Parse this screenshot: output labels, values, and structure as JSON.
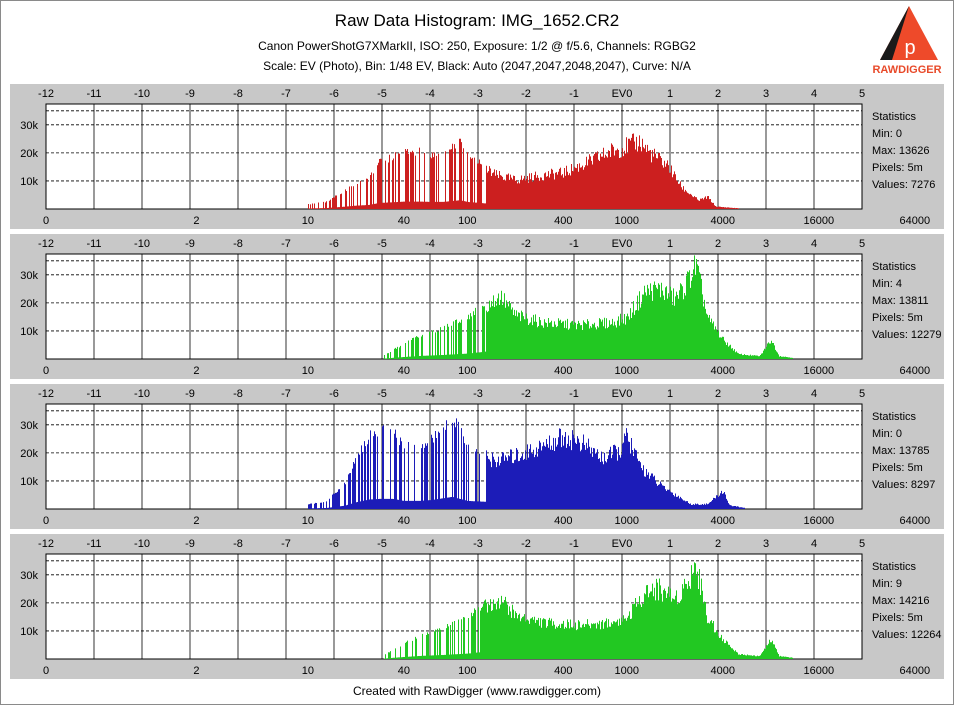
{
  "header": {
    "title": "Raw Data Histogram: IMG_1652.CR2",
    "subtitle1": "Canon PowerShotG7XMarkII, ISO: 250, Exposure: 1/2 @ f/5.6, Channels: RGBG2",
    "subtitle2": "Scale: EV (Photo), Bin: 1/48 EV, Black: Auto (2047,2047,2048,2047), Curve: N/A"
  },
  "logo": {
    "text": "RAWDIGGER",
    "letter": "p"
  },
  "footer": "Created with RawDigger (www.rawdigger.com)",
  "colors": {
    "panel_bg": "#c8c8c8",
    "plot_bg": "#ffffff",
    "red": "#cc1f1f",
    "green": "#22c822",
    "blue": "#1c1cb8",
    "green2": "#22c822"
  },
  "chart_data": [
    {
      "type": "bar",
      "channel": "R",
      "color": "#cc1f1f",
      "x_scale": "log2",
      "ev_ticks": [
        "-12",
        "-11",
        "-10",
        "-9",
        "-8",
        "-7",
        "-6",
        "-5",
        "-4",
        "-3",
        "-2",
        "-1",
        "EV0",
        "1",
        "2",
        "3",
        "4",
        "5"
      ],
      "value_ticks": [
        "0",
        "2",
        "10",
        "40",
        "100",
        "400",
        "1000",
        "4000",
        "16000",
        "64000"
      ],
      "y_ticks": [
        "30k",
        "20k",
        "10k"
      ],
      "ylim": [
        0,
        36000
      ],
      "peaks": [
        [
          10,
          1800
        ],
        [
          13,
          2800
        ],
        [
          17,
          7000
        ],
        [
          20,
          10000
        ],
        [
          24,
          12000
        ],
        [
          28,
          18000
        ],
        [
          34,
          20000
        ],
        [
          40,
          22000
        ],
        [
          50,
          22000
        ],
        [
          60,
          21000
        ],
        [
          70,
          21000
        ],
        [
          80,
          24000
        ],
        [
          90,
          26000
        ],
        [
          100,
          21000
        ],
        [
          150,
          14000
        ],
        [
          200,
          12000
        ],
        [
          300,
          14000
        ],
        [
          400,
          15000
        ],
        [
          600,
          20000
        ],
        [
          800,
          24000
        ],
        [
          1000,
          26000
        ],
        [
          1200,
          28000
        ],
        [
          1400,
          23000
        ],
        [
          1800,
          18000
        ],
        [
          2200,
          9000
        ],
        [
          2800,
          3500
        ],
        [
          3200,
          5000
        ],
        [
          3600,
          1000
        ],
        [
          5000,
          300
        ]
      ],
      "statistics": {
        "label": "Statistics",
        "min": "Min: 0",
        "max": "Max: 13626",
        "pixels": "Pixels: 5m",
        "values": "Values: 7276"
      }
    },
    {
      "type": "bar",
      "channel": "G",
      "color": "#22c822",
      "x_scale": "log2",
      "ev_ticks": [
        "-12",
        "-11",
        "-10",
        "-9",
        "-8",
        "-7",
        "-6",
        "-5",
        "-4",
        "-3",
        "-2",
        "-1",
        "EV0",
        "1",
        "2",
        "3",
        "4",
        "5"
      ],
      "value_ticks": [
        "0",
        "2",
        "10",
        "40",
        "100",
        "400",
        "1000",
        "4000",
        "16000",
        "64000"
      ],
      "y_ticks": [
        "30k",
        "20k",
        "10k"
      ],
      "ylim": [
        0,
        36000
      ],
      "peaks": [
        [
          30,
          1500
        ],
        [
          40,
          6000
        ],
        [
          50,
          9000
        ],
        [
          70,
          12000
        ],
        [
          100,
          16000
        ],
        [
          130,
          22000
        ],
        [
          160,
          26000
        ],
        [
          200,
          18000
        ],
        [
          300,
          15000
        ],
        [
          500,
          14000
        ],
        [
          800,
          15000
        ],
        [
          1000,
          17000
        ],
        [
          1300,
          28000
        ],
        [
          1600,
          29000
        ],
        [
          2000,
          25000
        ],
        [
          2300,
          30000
        ],
        [
          2700,
          39000
        ],
        [
          3200,
          17000
        ],
        [
          4000,
          8000
        ],
        [
          5000,
          2000
        ],
        [
          6800,
          1200
        ],
        [
          8000,
          8000
        ],
        [
          9000,
          1200
        ],
        [
          11000,
          500
        ]
      ],
      "statistics": {
        "label": "Statistics",
        "min": "Min: 4",
        "max": "Max: 13811",
        "pixels": "Pixels: 5m",
        "values": "Values: 12279"
      }
    },
    {
      "type": "bar",
      "channel": "B",
      "color": "#1c1cb8",
      "x_scale": "log2",
      "ev_ticks": [
        "-12",
        "-11",
        "-10",
        "-9",
        "-8",
        "-7",
        "-6",
        "-5",
        "-4",
        "-3",
        "-2",
        "-1",
        "EV0",
        "1",
        "2",
        "3",
        "4",
        "5"
      ],
      "value_ticks": [
        "0",
        "2",
        "10",
        "40",
        "100",
        "400",
        "1000",
        "4000",
        "16000",
        "64000"
      ],
      "y_ticks": [
        "30k",
        "20k",
        "10k"
      ],
      "ylim": [
        0,
        36000
      ],
      "peaks": [
        [
          10,
          1800
        ],
        [
          13,
          3000
        ],
        [
          17,
          10000
        ],
        [
          20,
          20000
        ],
        [
          24,
          28000
        ],
        [
          28,
          30000
        ],
        [
          34,
          30000
        ],
        [
          40,
          24000
        ],
        [
          50,
          24000
        ],
        [
          60,
          27000
        ],
        [
          80,
          36000
        ],
        [
          100,
          24000
        ],
        [
          150,
          20000
        ],
        [
          200,
          22000
        ],
        [
          300,
          26000
        ],
        [
          400,
          30000
        ],
        [
          500,
          28000
        ],
        [
          700,
          21000
        ],
        [
          900,
          24000
        ],
        [
          1000,
          30000
        ],
        [
          1200,
          18000
        ],
        [
          1600,
          10000
        ],
        [
          2000,
          6000
        ],
        [
          2500,
          2000
        ],
        [
          3200,
          2000
        ],
        [
          4000,
          7500
        ],
        [
          4400,
          1500
        ],
        [
          5500,
          400
        ]
      ],
      "statistics": {
        "label": "Statistics",
        "min": "Min: 0",
        "max": "Max: 13785",
        "pixels": "Pixels: 5m",
        "values": "Values: 8297"
      }
    },
    {
      "type": "bar",
      "channel": "G2",
      "color": "#22c822",
      "x_scale": "log2",
      "ev_ticks": [
        "-12",
        "-11",
        "-10",
        "-9",
        "-8",
        "-7",
        "-6",
        "-5",
        "-4",
        "-3",
        "-2",
        "-1",
        "EV0",
        "1",
        "2",
        "3",
        "4",
        "5"
      ],
      "value_ticks": [
        "0",
        "2",
        "10",
        "40",
        "100",
        "400",
        "1000",
        "4000",
        "16000",
        "64000"
      ],
      "y_ticks": [
        "30k",
        "20k",
        "10k"
      ],
      "ylim": [
        0,
        36000
      ],
      "peaks": [
        [
          30,
          1500
        ],
        [
          40,
          6000
        ],
        [
          50,
          9000
        ],
        [
          70,
          12000
        ],
        [
          100,
          16000
        ],
        [
          130,
          22000
        ],
        [
          160,
          25000
        ],
        [
          200,
          18000
        ],
        [
          300,
          15000
        ],
        [
          500,
          14000
        ],
        [
          800,
          15000
        ],
        [
          1000,
          17000
        ],
        [
          1300,
          28000
        ],
        [
          1600,
          29000
        ],
        [
          2000,
          25000
        ],
        [
          2300,
          30000
        ],
        [
          2700,
          39000
        ],
        [
          3200,
          17000
        ],
        [
          4000,
          8000
        ],
        [
          5000,
          2000
        ],
        [
          6800,
          1200
        ],
        [
          8000,
          8000
        ],
        [
          9000,
          1200
        ],
        [
          11000,
          500
        ]
      ],
      "statistics": {
        "label": "Statistics",
        "min": "Min: 9",
        "max": "Max: 14216",
        "pixels": "Pixels: 5m",
        "values": "Values: 12264"
      }
    }
  ]
}
